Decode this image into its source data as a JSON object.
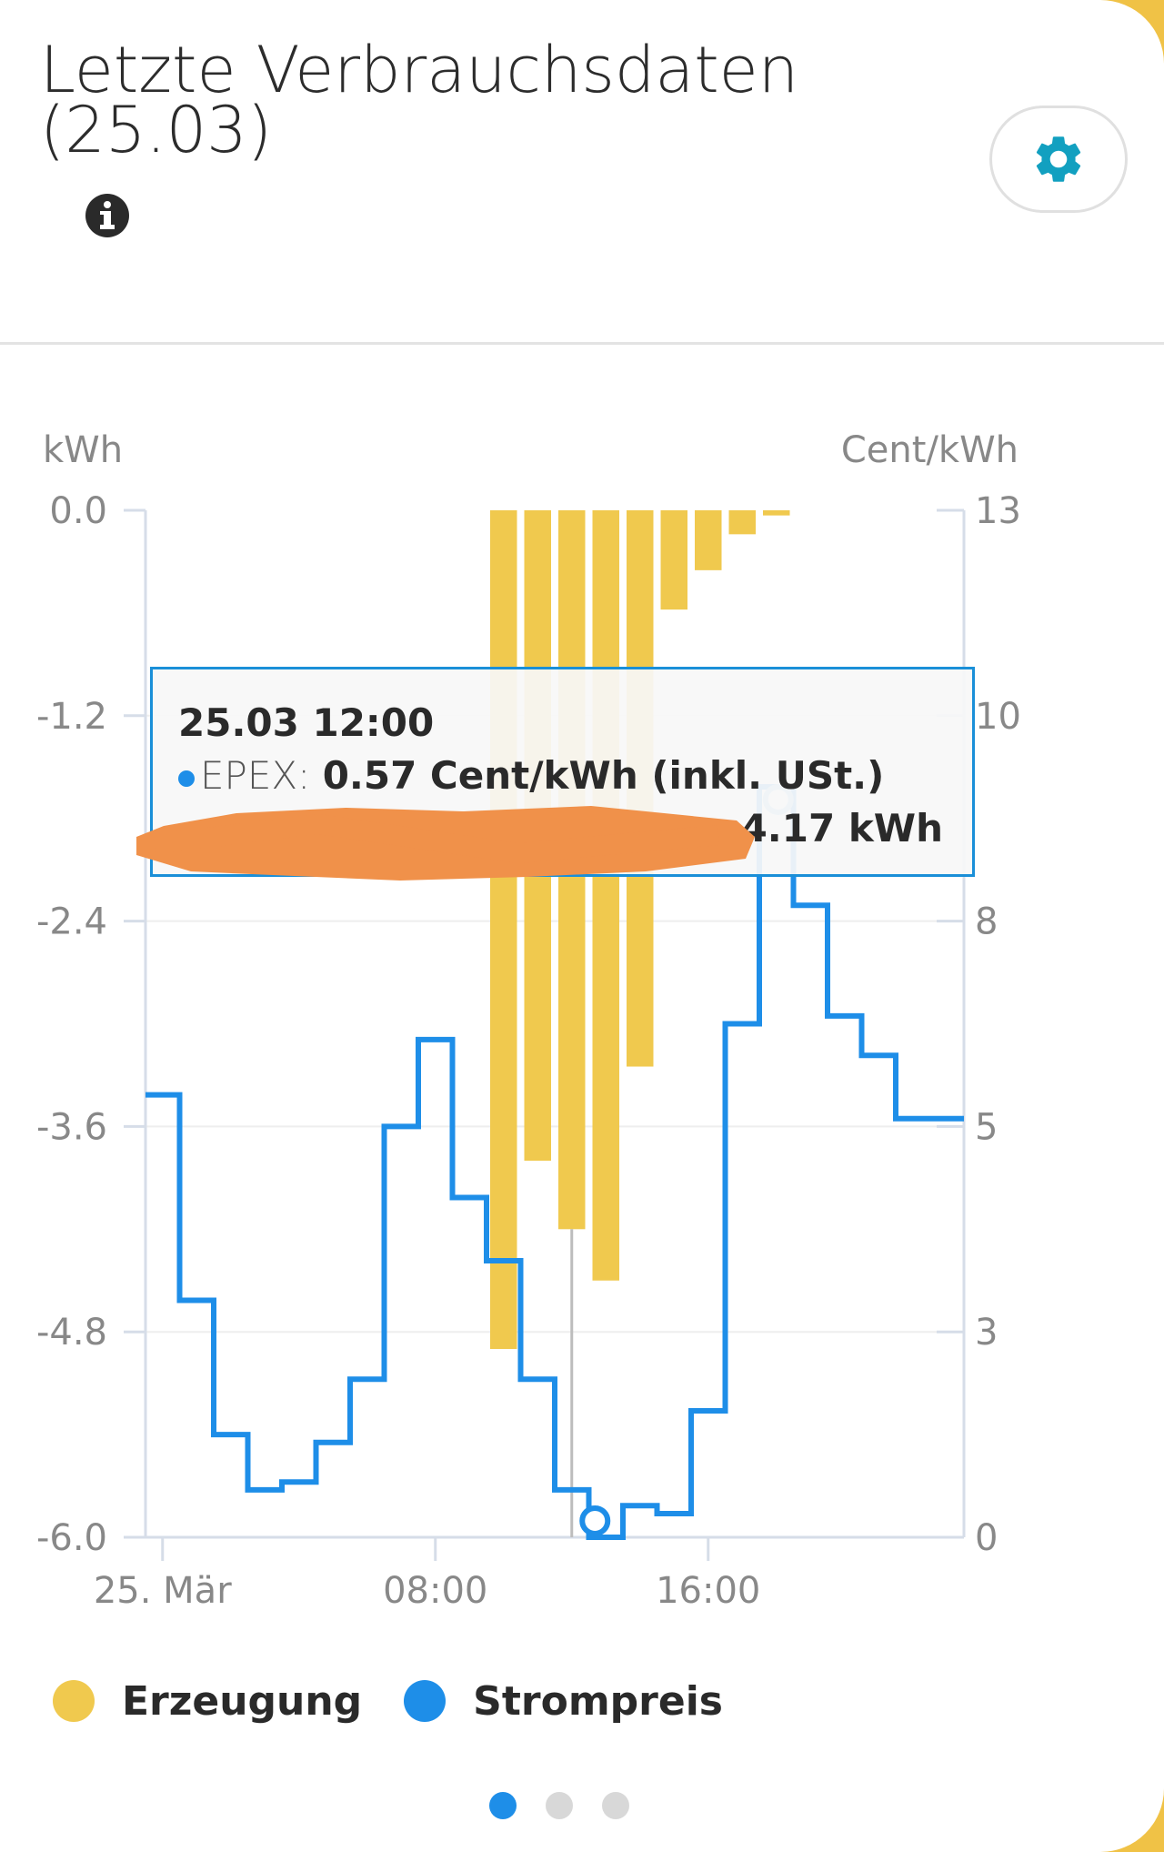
{
  "header": {
    "title": "Letzte Verbrauchsdaten (25.03)",
    "info_icon": "info-icon",
    "settings_icon": "gear-icon"
  },
  "colors": {
    "generation": "#f0c94e",
    "price": "#1e8ee8",
    "tooltip_border": "#1a8fd8",
    "redaction": "#f0914a"
  },
  "chart_data": {
    "type": "bar",
    "x_ticks": [
      "25. Mär",
      "08:00",
      "16:00"
    ],
    "left_axis": {
      "label": "kWh",
      "ticks": [
        "0.0",
        "-1.2",
        "-2.4",
        "-3.6",
        "-4.8",
        "-6.0"
      ],
      "ylim": [
        -6.0,
        0.0
      ]
    },
    "right_axis": {
      "label": "Cent/kWh",
      "ticks": [
        "13",
        "10",
        "8",
        "5",
        "3",
        "0"
      ],
      "ylim": [
        0,
        13
      ]
    },
    "grid": true,
    "series": [
      {
        "name": "Erzeugung",
        "type": "bar",
        "axis": "left",
        "hours": [
          10,
          11,
          12,
          13,
          14,
          15,
          16,
          17,
          18
        ],
        "values": [
          -4.9,
          -3.8,
          -4.2,
          -4.5,
          -3.25,
          -0.58,
          -0.35,
          -0.14,
          -0.03
        ]
      },
      {
        "name": "Strompreis",
        "type": "step-line",
        "axis": "right",
        "hours": [
          0,
          1,
          2,
          3,
          4,
          5,
          6,
          7,
          8,
          9,
          10,
          11,
          12,
          13,
          14,
          15,
          16,
          17,
          18,
          19,
          20,
          21,
          22,
          23
        ],
        "values": [
          5.6,
          3.0,
          1.3,
          0.6,
          0.7,
          1.2,
          2.0,
          5.2,
          6.3,
          4.3,
          3.5,
          2.0,
          0.6,
          0.0,
          0.4,
          0.3,
          1.6,
          6.5,
          9.5,
          8.0,
          6.6,
          6.1,
          5.3,
          5.3
        ]
      }
    ],
    "highlight_hour": 12,
    "tooltip": {
      "time": "25.03 12:00",
      "price_label": "EPEX:",
      "price_value": "0.57 Cent/kWh (inkl. USt.)",
      "gen_value": "-4.17 kWh"
    }
  },
  "legend": [
    {
      "label": "Erzeugung",
      "color": "#f0c94e"
    },
    {
      "label": "Strompreis",
      "color": "#1e8ee8"
    }
  ],
  "pager": {
    "pages": 3,
    "active": 0
  }
}
